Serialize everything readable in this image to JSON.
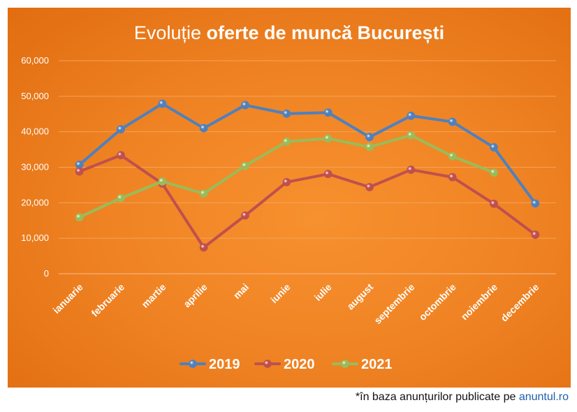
{
  "chart_data": {
    "type": "line",
    "title_prefix": "Evoluție ",
    "title_bold": "oferte de muncă București",
    "categories": [
      "ianuarie",
      "februarie",
      "martie",
      "aprilie",
      "mai",
      "iunie",
      "iulie",
      "august",
      "septembrie",
      "octombrie",
      "noiembrie",
      "decembrie"
    ],
    "ylim": [
      0,
      60000
    ],
    "yticks": [
      "0",
      "10,000",
      "20,000",
      "30,000",
      "40,000",
      "50,000",
      "60,000"
    ],
    "series": [
      {
        "name": "2019",
        "color": "#4f81bd",
        "values": [
          30700,
          40700,
          47900,
          41000,
          47500,
          45100,
          45400,
          38500,
          44500,
          42800,
          35600,
          19800
        ]
      },
      {
        "name": "2020",
        "color": "#c0504d",
        "values": [
          28800,
          33400,
          25400,
          7400,
          16400,
          25800,
          28100,
          24400,
          29300,
          27200,
          19700,
          11000
        ]
      },
      {
        "name": "2021",
        "color": "#9bbb59",
        "values": [
          15900,
          21300,
          26000,
          22600,
          30400,
          37200,
          38100,
          35700,
          39000,
          33100,
          28500,
          null
        ]
      }
    ],
    "legend_position": "bottom",
    "grid": true
  },
  "footnote": {
    "text": "*în baza anunțurilor publicate pe ",
    "link": "anuntul.ro"
  }
}
